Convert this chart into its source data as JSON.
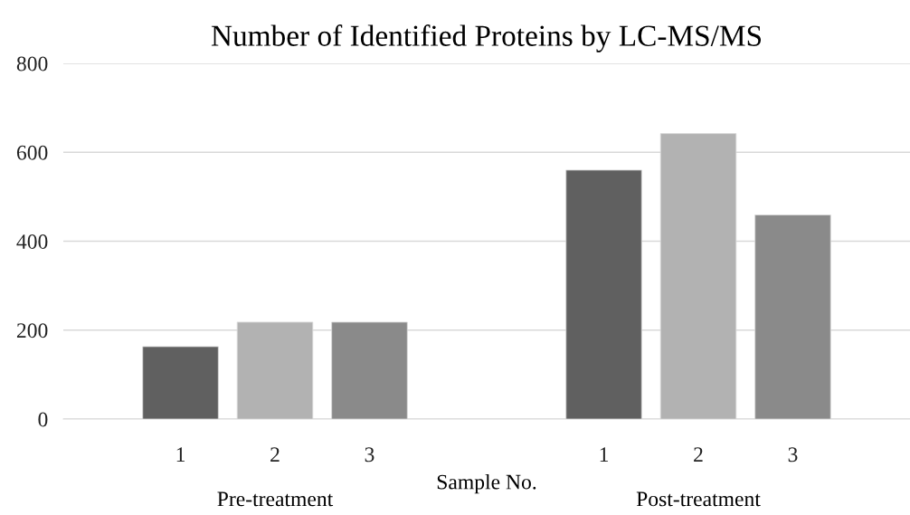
{
  "chart_data": {
    "type": "bar",
    "title": "Number of Identified Proteins by LC-MS/MS",
    "xlabel": "Sample No.",
    "categories": [
      "1",
      "2",
      "3",
      "1",
      "2",
      "3"
    ],
    "values": [
      163,
      218,
      218,
      560,
      642,
      459
    ],
    "colors": [
      "#606060",
      "#b2b2b2",
      "#8a8a8a",
      "#606060",
      "#b2b2b2",
      "#8a8a8a"
    ],
    "annotations": [
      "Pre-treatment",
      "Post-treatment"
    ],
    "ylim": [
      0,
      800
    ],
    "yticks": [
      0,
      200,
      400,
      600,
      800
    ],
    "grid": "y",
    "legend": false
  }
}
